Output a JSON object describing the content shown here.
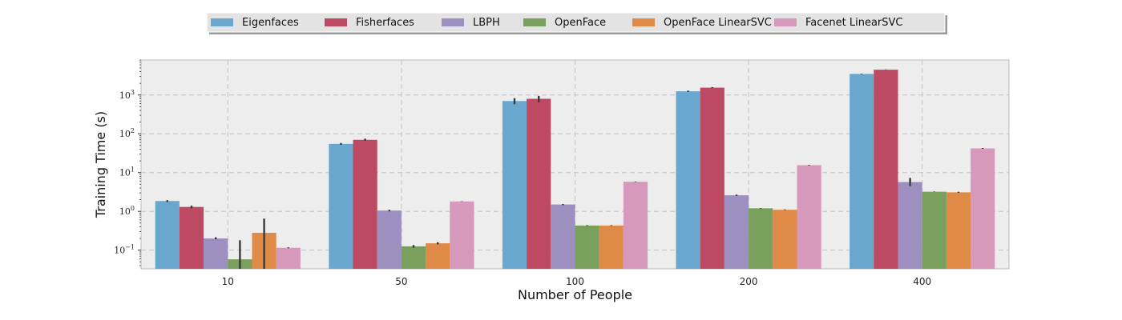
{
  "chart_data": {
    "type": "bar",
    "xlabel": "Number of People",
    "ylabel": "Training Time (s)",
    "yscale": "log",
    "ylim": [
      0.033,
      8000
    ],
    "grid": true,
    "legend_position": "top-center",
    "categories": [
      "10",
      "50",
      "100",
      "200",
      "400"
    ],
    "series": [
      {
        "name": "Eigenfaces",
        "color": "#6aa7cf",
        "values": [
          1.85,
          55,
          700,
          1250,
          3500
        ],
        "err_low": [
          1.75,
          52,
          580,
          1200,
          3450
        ],
        "err_high": [
          1.95,
          58,
          830,
          1300,
          3560
        ]
      },
      {
        "name": "Fisherfaces",
        "color": "#bd4a62",
        "values": [
          1.3,
          70,
          800,
          1550,
          4500
        ],
        "err_low": [
          1.2,
          66,
          650,
          1500,
          4450
        ],
        "err_high": [
          1.4,
          75,
          950,
          1600,
          4560
        ]
      },
      {
        "name": "LBPH",
        "color": "#9d8fbf",
        "values": [
          0.2,
          1.05,
          1.5,
          2.6,
          5.7
        ],
        "err_low": [
          0.19,
          1.0,
          1.45,
          2.5,
          4.5
        ],
        "err_high": [
          0.215,
          1.1,
          1.55,
          2.7,
          7.3
        ]
      },
      {
        "name": "OpenFace",
        "color": "#79a05c",
        "values": [
          0.058,
          0.125,
          0.43,
          1.2,
          3.2
        ],
        "err_low": [
          0.033,
          0.115,
          0.42,
          1.18,
          3.15
        ],
        "err_high": [
          0.18,
          0.135,
          0.44,
          1.22,
          3.25
        ]
      },
      {
        "name": "OpenFace LinearSVC",
        "color": "#e08a48",
        "values": [
          0.28,
          0.15,
          0.43,
          1.1,
          3.1
        ],
        "err_low": [
          0.033,
          0.14,
          0.42,
          1.08,
          3.0
        ],
        "err_high": [
          0.65,
          0.16,
          0.44,
          1.12,
          3.2
        ]
      },
      {
        "name": "Facenet LinearSVC",
        "color": "#d699bc",
        "values": [
          0.115,
          1.8,
          5.8,
          15.5,
          42
        ],
        "err_low": [
          0.112,
          1.78,
          5.7,
          15.2,
          41
        ],
        "err_high": [
          0.118,
          1.82,
          5.9,
          15.8,
          43
        ]
      }
    ],
    "y_tick_exponents": [
      -1,
      0,
      1,
      2,
      3
    ]
  }
}
